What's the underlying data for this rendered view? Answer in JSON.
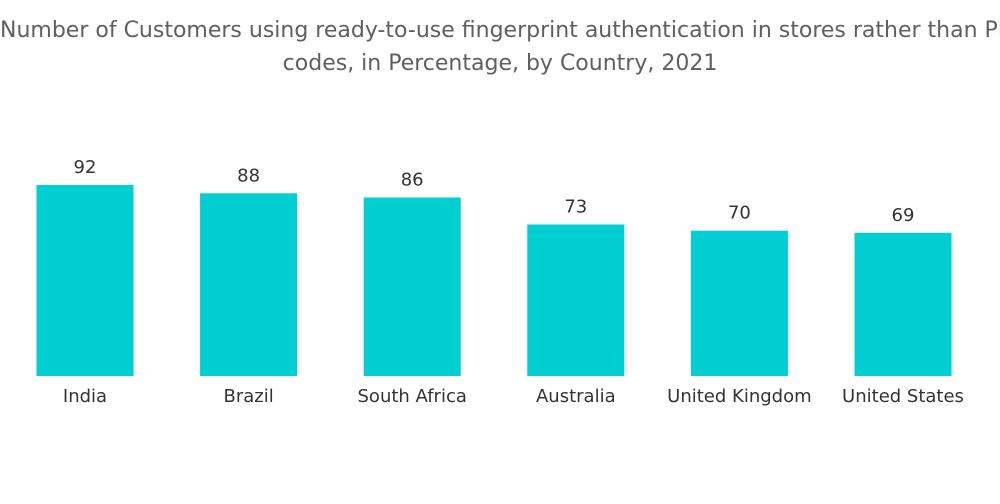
{
  "chart_data": {
    "type": "bar",
    "title_line1": "Number of Customers using ready-to-use fingerprint authentication in stores rather than PIN",
    "title_line2": "codes, in Percentage, by Country, 2021",
    "categories": [
      "India",
      "Brazil",
      "South Africa",
      "Australia",
      "United Kingdom",
      "United States"
    ],
    "values": [
      92,
      88,
      86,
      73,
      70,
      69
    ],
    "xlabel": "",
    "ylabel": "",
    "ylim": [
      0,
      100
    ],
    "grid": false,
    "legend": "none",
    "bar_color": "#00ced1"
  }
}
